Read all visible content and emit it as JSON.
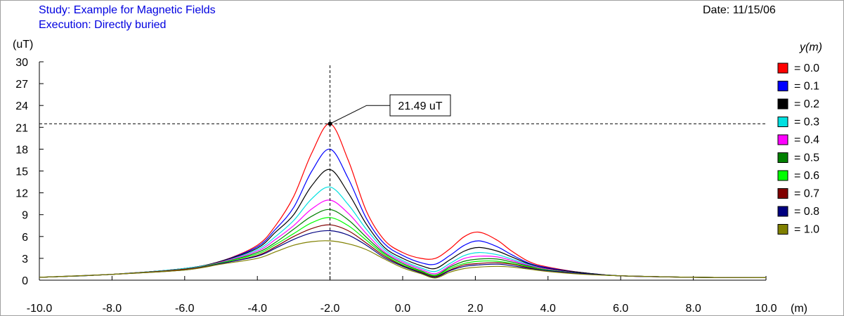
{
  "header": {
    "study": "Study: Example for Magnetic Fields",
    "execution": "Execution: Directly buried",
    "date": "Date: 11/15/06"
  },
  "cursor": {
    "label": "21.49 uT",
    "x": -2.0,
    "y": 21.49
  },
  "chart_data": {
    "type": "line",
    "title": "",
    "xlabel": "(m)",
    "ylabel": "(uT)",
    "xlim": [
      -10,
      10
    ],
    "ylim": [
      0,
      30
    ],
    "xticks": [
      "-10.0",
      "-8.0",
      "-6.0",
      "-4.0",
      "-2.0",
      "0.0",
      "2.0",
      "4.0",
      "6.0",
      "8.0",
      "10.0"
    ],
    "yticks": [
      "0",
      "3",
      "6",
      "9",
      "12",
      "15",
      "18",
      "21",
      "24",
      "27",
      "30"
    ],
    "legend_title": "y(m)",
    "legend_position": "right",
    "grid": false,
    "x": [
      -10,
      -8,
      -6,
      -5,
      -4,
      -3.5,
      -3,
      -2.5,
      -2,
      -1.5,
      -1,
      -0.5,
      0,
      0.5,
      0.9,
      1.3,
      1.7,
      2.1,
      2.6,
      3,
      3.5,
      4,
      5,
      6,
      8,
      10
    ],
    "series": [
      {
        "name": "= 0.0",
        "color": "#ff0000",
        "values": [
          0.4,
          0.8,
          1.6,
          2.6,
          4.8,
          7.5,
          11.5,
          17.5,
          21.49,
          16.5,
          9.5,
          5.5,
          3.8,
          3.0,
          3.0,
          4.3,
          6.0,
          6.6,
          5.5,
          4.0,
          2.5,
          1.8,
          1.0,
          0.6,
          0.4,
          0.35
        ]
      },
      {
        "name": "= 0.1",
        "color": "#0000ff",
        "values": [
          0.4,
          0.8,
          1.6,
          2.6,
          4.6,
          7.0,
          10.0,
          15.0,
          18.0,
          14.0,
          8.5,
          5.0,
          3.4,
          2.4,
          2.2,
          3.4,
          4.8,
          5.4,
          4.6,
          3.5,
          2.3,
          1.7,
          1.0,
          0.6,
          0.4,
          0.35
        ]
      },
      {
        "name": "= 0.2",
        "color": "#000000",
        "values": [
          0.4,
          0.8,
          1.6,
          2.6,
          4.4,
          6.6,
          9.0,
          13.0,
          15.2,
          12.0,
          7.7,
          4.5,
          3.0,
          2.0,
          1.6,
          2.8,
          4.0,
          4.5,
          4.0,
          3.2,
          2.2,
          1.6,
          1.0,
          0.6,
          0.4,
          0.35
        ]
      },
      {
        "name": "= 0.3",
        "color": "#00e0e0",
        "values": [
          0.4,
          0.8,
          1.6,
          2.5,
          4.2,
          6.0,
          8.2,
          11.2,
          12.8,
          10.4,
          7.0,
          4.2,
          2.7,
          1.7,
          1.2,
          2.3,
          3.4,
          3.8,
          3.5,
          2.9,
          2.1,
          1.5,
          0.9,
          0.6,
          0.4,
          0.35
        ]
      },
      {
        "name": "= 0.4",
        "color": "#ff00ff",
        "values": [
          0.4,
          0.8,
          1.5,
          2.5,
          4.0,
          5.6,
          7.5,
          9.8,
          11.0,
          9.2,
          6.4,
          3.9,
          2.5,
          1.5,
          0.9,
          2.0,
          3.0,
          3.3,
          3.2,
          2.7,
          2.0,
          1.5,
          0.9,
          0.6,
          0.4,
          0.35
        ]
      },
      {
        "name": "= 0.5",
        "color": "#008000",
        "values": [
          0.4,
          0.8,
          1.5,
          2.4,
          3.8,
          5.2,
          7.0,
          8.8,
          9.7,
          8.3,
          5.9,
          3.7,
          2.3,
          1.3,
          0.7,
          1.8,
          2.6,
          2.9,
          2.9,
          2.5,
          1.9,
          1.4,
          0.9,
          0.6,
          0.4,
          0.35
        ]
      },
      {
        "name": "= 0.6",
        "color": "#00ff00",
        "values": [
          0.4,
          0.8,
          1.5,
          2.4,
          3.6,
          4.9,
          6.4,
          7.9,
          8.6,
          7.5,
          5.5,
          3.5,
          2.1,
          1.2,
          0.6,
          1.6,
          2.3,
          2.6,
          2.6,
          2.3,
          1.8,
          1.4,
          0.9,
          0.6,
          0.4,
          0.35
        ]
      },
      {
        "name": "= 0.7",
        "color": "#800000",
        "values": [
          0.4,
          0.8,
          1.5,
          2.3,
          3.4,
          4.6,
          6.0,
          7.1,
          7.6,
          6.8,
          5.1,
          3.3,
          2.0,
          1.1,
          0.5,
          1.4,
          2.1,
          2.3,
          2.4,
          2.2,
          1.7,
          1.3,
          0.9,
          0.6,
          0.4,
          0.35
        ]
      },
      {
        "name": "= 0.8",
        "color": "#000080",
        "values": [
          0.4,
          0.8,
          1.4,
          2.3,
          3.3,
          4.4,
          5.6,
          6.5,
          6.8,
          6.2,
          4.8,
          3.1,
          1.9,
          1.0,
          0.4,
          1.3,
          1.9,
          2.1,
          2.2,
          2.0,
          1.6,
          1.3,
          0.9,
          0.6,
          0.4,
          0.35
        ]
      },
      {
        "name": "= 1.0",
        "color": "#808000",
        "values": [
          0.4,
          0.8,
          1.4,
          2.2,
          3.0,
          3.9,
          4.8,
          5.3,
          5.4,
          5.0,
          4.2,
          2.9,
          1.7,
          0.9,
          0.3,
          1.1,
          1.6,
          1.8,
          1.9,
          1.8,
          1.5,
          1.2,
          0.8,
          0.6,
          0.4,
          0.35
        ]
      }
    ]
  }
}
